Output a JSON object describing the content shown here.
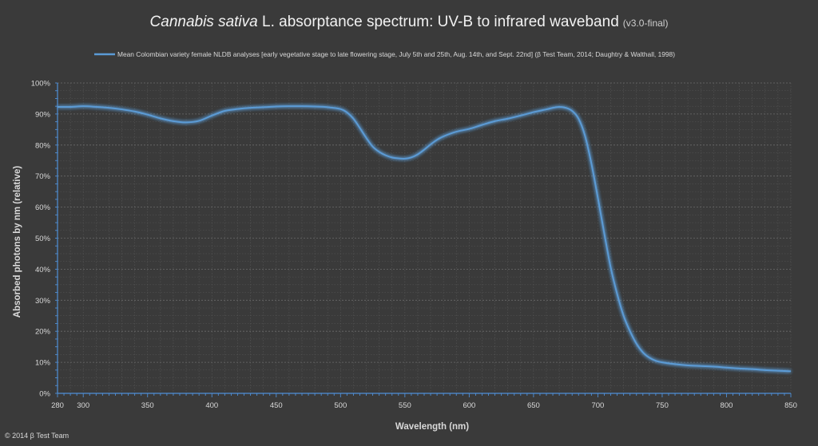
{
  "chart_data": {
    "type": "line",
    "title": {
      "species": "Cannabis sativa",
      "main": " L. absorptance spectrum: UV-B to infrared waveband",
      "version": "(v3.0-final)"
    },
    "xlabel": "Wavelength (nm)",
    "ylabel": "Absorbed photons by nm (relative)",
    "xlim": [
      280,
      850
    ],
    "ylim": [
      0,
      100
    ],
    "x_ticks": [
      280,
      300,
      350,
      400,
      450,
      500,
      550,
      600,
      650,
      700,
      750,
      800,
      850
    ],
    "y_ticks": [
      0,
      10,
      20,
      30,
      40,
      50,
      60,
      70,
      80,
      90,
      100
    ],
    "y_tick_suffix": "%",
    "grid": true,
    "legend_position": "top",
    "colors": {
      "background": "#3a3a3a",
      "line": "#5b9bd5",
      "glow": "#9fc3ea",
      "grid": "#575757",
      "axis": "#4f8fd6",
      "text": "#d9d9d9",
      "title_text": "#f2f2f2"
    },
    "series": [
      {
        "name": "Mean Colombian variety female NLDB analyses [early vegetative stage to late flowering stage, July 5th and 25th, Aug. 14th, and Sept. 22nd] (β Test Team, 2014; Daughtry & Walthall, 1998)",
        "points": [
          [
            280,
            92.3
          ],
          [
            290,
            92.3
          ],
          [
            300,
            92.5
          ],
          [
            310,
            92.3
          ],
          [
            320,
            92.0
          ],
          [
            330,
            91.5
          ],
          [
            340,
            90.8
          ],
          [
            350,
            89.8
          ],
          [
            360,
            88.6
          ],
          [
            370,
            87.7
          ],
          [
            380,
            87.3
          ],
          [
            390,
            87.8
          ],
          [
            400,
            89.5
          ],
          [
            410,
            91.0
          ],
          [
            420,
            91.6
          ],
          [
            430,
            92.0
          ],
          [
            440,
            92.2
          ],
          [
            450,
            92.4
          ],
          [
            460,
            92.5
          ],
          [
            470,
            92.5
          ],
          [
            480,
            92.4
          ],
          [
            490,
            92.2
          ],
          [
            500,
            91.6
          ],
          [
            505,
            90.5
          ],
          [
            510,
            88.5
          ],
          [
            515,
            85.5
          ],
          [
            520,
            82.3
          ],
          [
            525,
            79.5
          ],
          [
            530,
            77.8
          ],
          [
            535,
            76.7
          ],
          [
            540,
            76.0
          ],
          [
            545,
            75.7
          ],
          [
            550,
            75.6
          ],
          [
            555,
            76.0
          ],
          [
            560,
            77.0
          ],
          [
            565,
            78.5
          ],
          [
            570,
            80.2
          ],
          [
            575,
            81.7
          ],
          [
            580,
            82.8
          ],
          [
            590,
            84.3
          ],
          [
            600,
            85.2
          ],
          [
            610,
            86.5
          ],
          [
            620,
            87.7
          ],
          [
            630,
            88.5
          ],
          [
            640,
            89.5
          ],
          [
            650,
            90.6
          ],
          [
            660,
            91.5
          ],
          [
            665,
            92.0
          ],
          [
            670,
            92.3
          ],
          [
            675,
            92.0
          ],
          [
            680,
            91.0
          ],
          [
            685,
            88.5
          ],
          [
            690,
            83.0
          ],
          [
            695,
            74.0
          ],
          [
            700,
            63.0
          ],
          [
            705,
            51.5
          ],
          [
            710,
            40.5
          ],
          [
            715,
            32.0
          ],
          [
            720,
            25.0
          ],
          [
            725,
            20.0
          ],
          [
            730,
            16.0
          ],
          [
            735,
            13.2
          ],
          [
            740,
            11.5
          ],
          [
            745,
            10.5
          ],
          [
            750,
            10.0
          ],
          [
            760,
            9.4
          ],
          [
            770,
            9.0
          ],
          [
            780,
            8.8
          ],
          [
            790,
            8.6
          ],
          [
            800,
            8.3
          ],
          [
            810,
            8.0
          ],
          [
            820,
            7.8
          ],
          [
            830,
            7.5
          ],
          [
            840,
            7.3
          ],
          [
            850,
            7.1
          ]
        ]
      }
    ]
  },
  "footer": {
    "copyright": "© 2014 β Test Team"
  }
}
